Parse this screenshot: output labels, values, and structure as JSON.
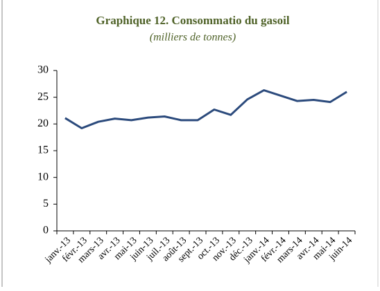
{
  "chart_data": {
    "type": "line",
    "title": "Graphique 12. Consommatio du  gasoil",
    "subtitle": "(milliers de tonnes)",
    "categories": [
      "janv.-13",
      "févr.-13",
      "mars-13",
      "avr.-13",
      "mai-13",
      "juin-13",
      "juil.-13",
      "août-13",
      "sept.-13",
      "oct.-13",
      "nov.-13",
      "déc.-13",
      "janv.-14",
      "févr.-14",
      "mars-14",
      "avr.-14",
      "mai-14",
      "juin-14"
    ],
    "values": [
      21.1,
      19.2,
      20.4,
      21.0,
      20.7,
      21.2,
      21.4,
      20.7,
      20.7,
      22.7,
      21.7,
      24.6,
      26.3,
      25.3,
      24.3,
      24.5,
      24.1,
      26.0
    ],
    "color": "#2b4a7c",
    "ylim": [
      0,
      30
    ],
    "yticks": [
      0,
      5,
      10,
      15,
      20,
      25,
      30
    ],
    "grid": false
  }
}
